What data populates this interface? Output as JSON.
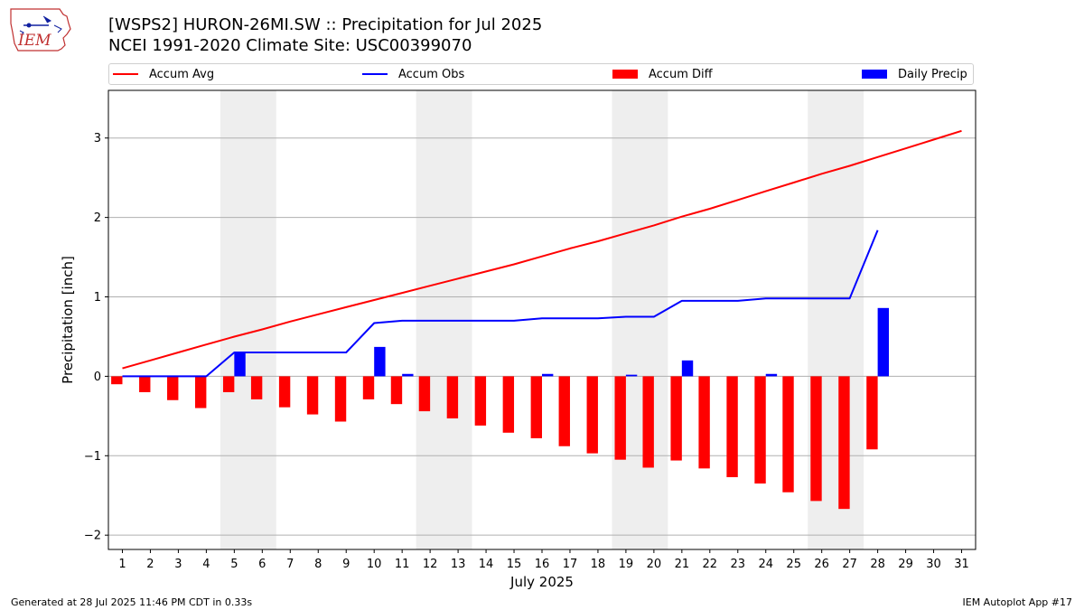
{
  "header": {
    "title_line1": "[WSPS2] HURON-26MI.SW :: Precipitation for Jul 2025",
    "title_line2": "NCEI 1991-2020 Climate Site: USC00399070",
    "logo_text": "IEM"
  },
  "footer": {
    "left": "Generated at 28 Jul 2025 11:46 PM CDT in 0.33s",
    "right": "IEM Autoplot App #17"
  },
  "colors": {
    "avg": "#ff0000",
    "obs": "#0000ff",
    "diff": "#ff0000",
    "daily": "#0000ff",
    "weekend_band": "#eeeeee",
    "grid": "#b0b0b0"
  },
  "chart_data": {
    "type": "bar",
    "xlabel": "July 2025",
    "ylabel": "Precipitation [inch]",
    "xlim": [
      0.5,
      31.5
    ],
    "ylim": [
      -2.18,
      3.6
    ],
    "yticks": [
      -2,
      -1,
      0,
      1,
      2,
      3
    ],
    "ytick_labels": [
      "−2",
      "−1",
      "0",
      "1",
      "2",
      "3"
    ],
    "x": [
      1,
      2,
      3,
      4,
      5,
      6,
      7,
      8,
      9,
      10,
      11,
      12,
      13,
      14,
      15,
      16,
      17,
      18,
      19,
      20,
      21,
      22,
      23,
      24,
      25,
      26,
      27,
      28,
      29,
      30,
      31
    ],
    "grid": "horizontal",
    "legend_position": "top",
    "weekend_bands": [
      [
        4.5,
        6.5
      ],
      [
        11.5,
        13.5
      ],
      [
        18.5,
        20.5
      ],
      [
        25.5,
        27.5
      ]
    ],
    "series": [
      {
        "name": "Accum Avg",
        "kind": "line",
        "x": [
          1,
          2,
          3,
          4,
          5,
          6,
          7,
          8,
          9,
          10,
          11,
          12,
          13,
          14,
          15,
          16,
          17,
          18,
          19,
          20,
          21,
          22,
          23,
          24,
          25,
          26,
          27,
          28,
          29,
          30,
          31
        ],
        "values": [
          0.1,
          0.2,
          0.3,
          0.4,
          0.5,
          0.59,
          0.69,
          0.78,
          0.87,
          0.96,
          1.05,
          1.14,
          1.23,
          1.32,
          1.41,
          1.51,
          1.61,
          1.7,
          1.8,
          1.9,
          2.01,
          2.11,
          2.22,
          2.33,
          2.44,
          2.55,
          2.65,
          2.76,
          2.87,
          2.98,
          3.09
        ]
      },
      {
        "name": "Accum Obs",
        "kind": "line",
        "x": [
          1,
          2,
          3,
          4,
          5,
          6,
          7,
          8,
          9,
          10,
          11,
          12,
          13,
          14,
          15,
          16,
          17,
          18,
          19,
          20,
          21,
          22,
          23,
          24,
          25,
          26,
          27,
          28
        ],
        "values": [
          0,
          0,
          0,
          0,
          0.3,
          0.3,
          0.3,
          0.3,
          0.3,
          0.67,
          0.7,
          0.7,
          0.7,
          0.7,
          0.7,
          0.73,
          0.73,
          0.73,
          0.75,
          0.75,
          0.95,
          0.95,
          0.95,
          0.98,
          0.98,
          0.98,
          0.98,
          1.84
        ]
      },
      {
        "name": "Accum Diff",
        "kind": "bar",
        "x": [
          1,
          2,
          3,
          4,
          5,
          6,
          7,
          8,
          9,
          10,
          11,
          12,
          13,
          14,
          15,
          16,
          17,
          18,
          19,
          20,
          21,
          22,
          23,
          24,
          25,
          26,
          27,
          28
        ],
        "values": [
          -0.1,
          -0.2,
          -0.3,
          -0.4,
          -0.2,
          -0.29,
          -0.39,
          -0.48,
          -0.57,
          -0.29,
          -0.35,
          -0.44,
          -0.53,
          -0.62,
          -0.71,
          -0.78,
          -0.88,
          -0.97,
          -1.05,
          -1.15,
          -1.06,
          -1.16,
          -1.27,
          -1.35,
          -1.46,
          -1.57,
          -1.67,
          -0.92
        ]
      },
      {
        "name": "Daily Precip",
        "kind": "bar",
        "x": [
          1,
          2,
          3,
          4,
          5,
          6,
          7,
          8,
          9,
          10,
          11,
          12,
          13,
          14,
          15,
          16,
          17,
          18,
          19,
          20,
          21,
          22,
          23,
          24,
          25,
          26,
          27,
          28
        ],
        "values": [
          0,
          0,
          0,
          0,
          0.3,
          0,
          0,
          0,
          0,
          0.37,
          0.03,
          0,
          0,
          0,
          0,
          0.03,
          0,
          0,
          0.02,
          0,
          0.2,
          0,
          0,
          0.03,
          0,
          0,
          0,
          0.86
        ]
      }
    ]
  }
}
